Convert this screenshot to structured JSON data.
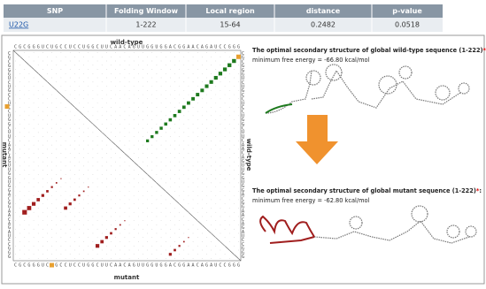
{
  "table": {
    "header": [
      "SNP",
      "Folding Window",
      "Local region",
      "distance",
      "p-value"
    ],
    "rows": [
      [
        "U22G",
        "1-222",
        "15-64",
        "0.2482",
        "0.0518"
      ]
    ]
  },
  "dotplot": {
    "top_label": "wild-type",
    "bottom_label": "mutant",
    "left_label": "mutant",
    "right_label": "wild-type",
    "sequence": "CGCGGGUCUGCCUCCUGGCUUCAACAGUUGGUGGACGGAACAGAUCCGGG"
  },
  "wildtype": {
    "title": "The optimal secondary structure of global wild-type sequence (1-222)",
    "star": "*",
    "colon": ":",
    "mfe": "minimum free energy = -66.80 kcal/mol"
  },
  "mutant": {
    "title": "The optimal secondary structure of global mutant sequence (1-222)",
    "star": "*",
    "colon": ":",
    "mfe": "minimum free energy = -62.80 kcal/mol"
  }
}
